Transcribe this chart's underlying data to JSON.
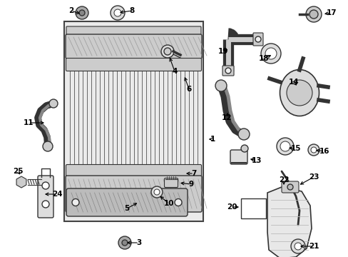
{
  "bg_color": "#ffffff",
  "line_color": "#333333",
  "fill_light": "#f5f5f5",
  "fill_med": "#dddddd",
  "fill_dark": "#bbbbbb"
}
